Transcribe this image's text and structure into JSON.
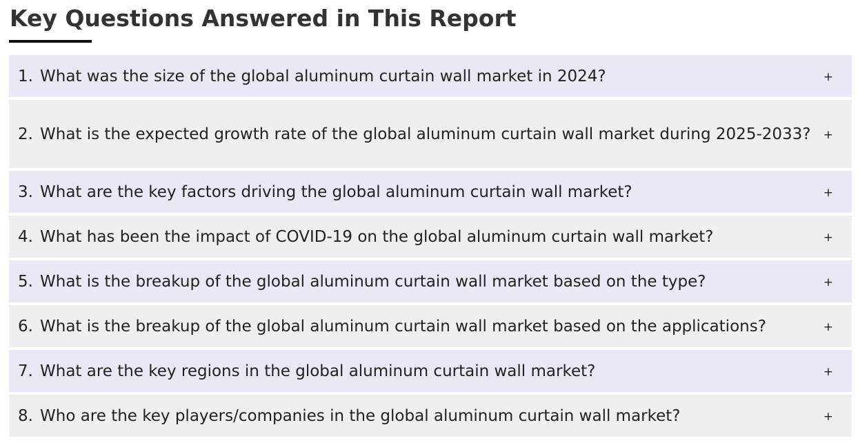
{
  "heading": "Key Questions Answered in This Report",
  "toggle_symbol": "+",
  "faq": [
    {
      "number": "1.",
      "question": "What was the size of the global aluminum curtain wall market in 2024?"
    },
    {
      "number": "2.",
      "question": "What is the expected growth rate of the global aluminum curtain wall market during 2025-2033?"
    },
    {
      "number": "3.",
      "question": "What are the key factors driving the global aluminum curtain wall market?"
    },
    {
      "number": "4.",
      "question": "What has been the impact of COVID-19 on the global aluminum curtain wall market?"
    },
    {
      "number": "5.",
      "question": "What is the breakup of the global aluminum curtain wall market based on the type?"
    },
    {
      "number": "6.",
      "question": "What is the breakup of the global aluminum curtain wall market based on the applications?"
    },
    {
      "number": "7.",
      "question": "What are the key regions in the global aluminum curtain wall market?"
    },
    {
      "number": "8.",
      "question": "Who are the key players/companies in the global aluminum curtain wall market?"
    }
  ]
}
